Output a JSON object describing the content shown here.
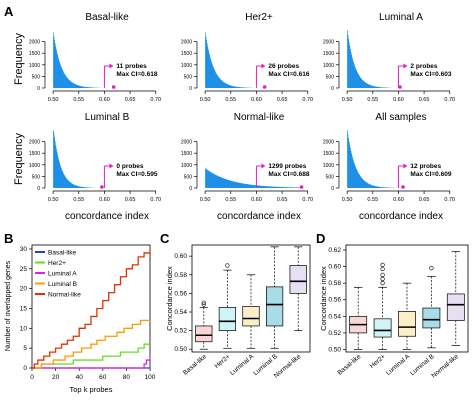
{
  "panel_labels": {
    "A": "A",
    "B": "B",
    "C": "C",
    "D": "D"
  },
  "colors": {
    "hist_fill": "#1e90e6",
    "annotation": "#e020c0",
    "B_series": [
      "#2040d0",
      "#66dd22",
      "#dd22dd",
      "#ff9900",
      "#dd3300"
    ]
  },
  "chart_data": [
    {
      "type": "histogram",
      "panel": "A",
      "ylabel": "Frequency",
      "xlabel": "concordance index",
      "x_ticks": [
        "0.50",
        "0.55",
        "0.60",
        "0.65",
        "0.70"
      ],
      "x_range": [
        0.49,
        0.72
      ],
      "y_ticks": [
        "0",
        "500",
        "1000",
        "1500",
        "2000"
      ],
      "y_range": [
        0,
        2500
      ],
      "threshold": 0.6,
      "subplots": [
        {
          "title": "Basal-like",
          "max_ci": 0.618,
          "decay": 0.016,
          "peak": 2400,
          "label_probes": "11 probes",
          "label_ci": "Max CI=0.618"
        },
        {
          "title": "Her2+",
          "max_ci": 0.616,
          "decay": 0.016,
          "peak": 2400,
          "label_probes": "26 probes",
          "label_ci": "Max CI=0.616"
        },
        {
          "title": "Luminal A",
          "max_ci": 0.603,
          "decay": 0.015,
          "peak": 2500,
          "label_probes": "2 probes",
          "label_ci": "Max CI=0.603"
        },
        {
          "title": "Luminal B",
          "max_ci": 0.595,
          "decay": 0.014,
          "peak": 2600,
          "label_probes": "0 probes",
          "label_ci": "Max CI=0.595"
        },
        {
          "title": "Normal-like",
          "max_ci": 0.688,
          "decay": 0.05,
          "peak": 850,
          "label_probes": "1299 probes",
          "label_ci": "Max CI=0.688"
        },
        {
          "title": "All samples",
          "max_ci": 0.609,
          "decay": 0.016,
          "peak": 2500,
          "label_probes": "12 probes",
          "label_ci": "Max CI=0.609"
        }
      ]
    },
    {
      "type": "line",
      "panel": "B",
      "xlabel": "Top k probes",
      "ylabel": "Number of overlapped genes",
      "x_ticks": [
        0,
        20,
        40,
        60,
        80,
        100
      ],
      "y_ticks": [
        0,
        5,
        10,
        15,
        20,
        25,
        30
      ],
      "xlim": [
        0,
        100
      ],
      "ylim": [
        0,
        31
      ],
      "legend": [
        "Basal-like",
        "Her2+",
        "Luminal A",
        "Luminal B",
        "Normal-like"
      ],
      "series": [
        {
          "name": "Basal-like",
          "points": [
            [
              0,
              0
            ],
            [
              100,
              0
            ]
          ]
        },
        {
          "name": "Her2+",
          "points": [
            [
              0,
              0
            ],
            [
              5,
              0
            ],
            [
              8,
              1
            ],
            [
              30,
              1
            ],
            [
              35,
              2
            ],
            [
              55,
              2
            ],
            [
              60,
              3
            ],
            [
              70,
              3
            ],
            [
              75,
              4
            ],
            [
              85,
              4
            ],
            [
              90,
              5
            ],
            [
              95,
              6
            ],
            [
              100,
              6
            ]
          ]
        },
        {
          "name": "Luminal A",
          "points": [
            [
              0,
              0
            ],
            [
              94,
              0
            ],
            [
              95,
              1
            ],
            [
              97,
              2
            ],
            [
              100,
              3
            ]
          ]
        },
        {
          "name": "Luminal B",
          "points": [
            [
              0,
              0
            ],
            [
              8,
              1
            ],
            [
              15,
              1
            ],
            [
              18,
              2
            ],
            [
              25,
              2
            ],
            [
              28,
              3
            ],
            [
              35,
              4
            ],
            [
              42,
              5
            ],
            [
              50,
              6
            ],
            [
              55,
              7
            ],
            [
              62,
              8
            ],
            [
              68,
              8
            ],
            [
              72,
              9
            ],
            [
              78,
              10
            ],
            [
              85,
              11
            ],
            [
              92,
              12
            ],
            [
              100,
              12
            ]
          ]
        },
        {
          "name": "Normal-like",
          "points": [
            [
              0,
              0
            ],
            [
              2,
              1
            ],
            [
              5,
              2
            ],
            [
              10,
              3
            ],
            [
              15,
              4
            ],
            [
              20,
              5
            ],
            [
              25,
              6
            ],
            [
              30,
              7
            ],
            [
              35,
              8
            ],
            [
              40,
              10
            ],
            [
              45,
              11
            ],
            [
              50,
              13
            ],
            [
              55,
              15
            ],
            [
              60,
              17
            ],
            [
              65,
              19
            ],
            [
              70,
              21
            ],
            [
              75,
              23
            ],
            [
              80,
              25
            ],
            [
              85,
              26
            ],
            [
              90,
              28
            ],
            [
              95,
              29
            ],
            [
              100,
              30
            ]
          ]
        }
      ]
    },
    {
      "type": "box",
      "panel": "C",
      "ylabel": "Concordance index",
      "categories": [
        "Basal-like",
        "Her2+",
        "Luminal A",
        "Luminal B",
        "Normal-like"
      ],
      "y_ticks": [
        "0.50",
        "0.52",
        "0.54",
        "0.56",
        "0.58",
        "0.60"
      ],
      "ylim": [
        0.497,
        0.612
      ],
      "colors": [
        "#f9d6d6",
        "#cdf4f6",
        "#fbefc8",
        "#a8dce6",
        "#e6e0f2"
      ],
      "boxes": [
        {
          "min": 0.5,
          "q1": 0.508,
          "median": 0.515,
          "q3": 0.525,
          "max": 0.545,
          "outliers": [
            0.55,
            0.548
          ]
        },
        {
          "min": 0.501,
          "q1": 0.52,
          "median": 0.53,
          "q3": 0.545,
          "max": 0.585,
          "outliers": [
            0.59
          ]
        },
        {
          "min": 0.501,
          "q1": 0.525,
          "median": 0.533,
          "q3": 0.546,
          "max": 0.58,
          "outliers": []
        },
        {
          "min": 0.501,
          "q1": 0.525,
          "median": 0.548,
          "q3": 0.567,
          "max": 0.61,
          "outliers": []
        },
        {
          "min": 0.52,
          "q1": 0.56,
          "median": 0.573,
          "q3": 0.59,
          "max": 0.61,
          "outliers": []
        }
      ]
    },
    {
      "type": "box",
      "panel": "D",
      "ylabel": "Concordance index",
      "categories": [
        "Basal-like",
        "Her2+",
        "Luminal A",
        "Luminal B",
        "Normal-like"
      ],
      "y_ticks": [
        "0.50",
        "0.52",
        "0.54",
        "0.56",
        "0.58",
        "0.60",
        "0.62"
      ],
      "ylim": [
        0.497,
        0.626
      ],
      "colors": [
        "#f9d6d6",
        "#cdf4f6",
        "#fbefc8",
        "#a8dce6",
        "#e6e0f2"
      ],
      "boxes": [
        {
          "min": 0.5,
          "q1": 0.52,
          "median": 0.53,
          "q3": 0.54,
          "max": 0.575,
          "outliers": []
        },
        {
          "min": 0.5,
          "q1": 0.515,
          "median": 0.523,
          "q3": 0.537,
          "max": 0.575,
          "outliers": [
            0.58,
            0.585,
            0.59,
            0.597,
            0.602
          ]
        },
        {
          "min": 0.5,
          "q1": 0.516,
          "median": 0.527,
          "q3": 0.546,
          "max": 0.58,
          "outliers": []
        },
        {
          "min": 0.502,
          "q1": 0.526,
          "median": 0.536,
          "q3": 0.55,
          "max": 0.588,
          "outliers": [
            0.598
          ]
        },
        {
          "min": 0.505,
          "q1": 0.535,
          "median": 0.554,
          "q3": 0.567,
          "max": 0.618,
          "outliers": []
        }
      ]
    }
  ]
}
